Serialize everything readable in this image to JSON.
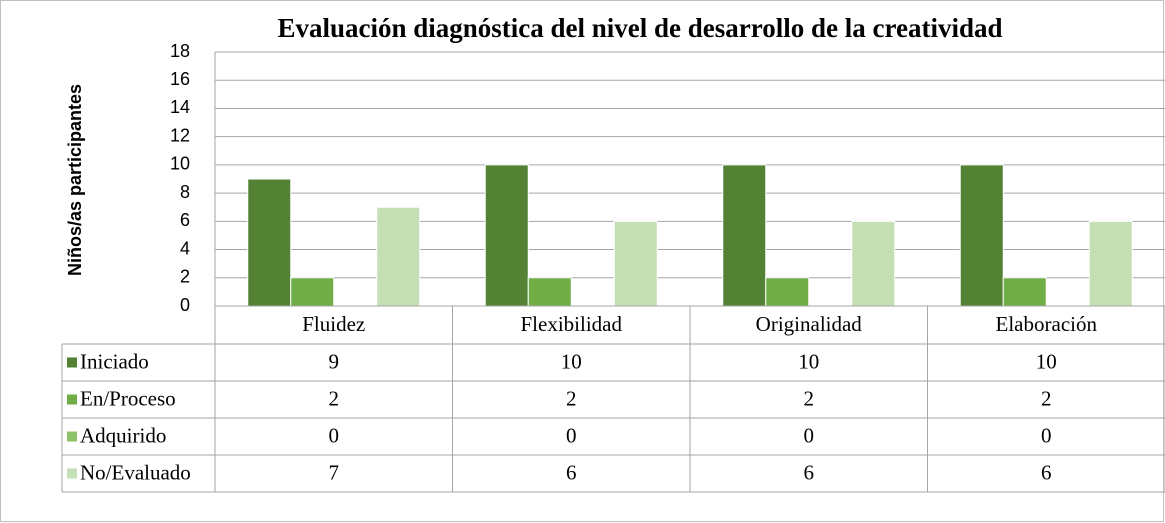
{
  "chart_data": {
    "type": "bar",
    "title": "Evaluación diagnóstica del nivel de desarrollo de la creatividad",
    "y_label": "Niños/as participantes",
    "categories": [
      "Fluidez",
      "Flexibilidad",
      "Originalidad",
      "Elaboración"
    ],
    "series": [
      {
        "name": "Iniciado",
        "color": "#548235",
        "values": [
          9,
          10,
          10,
          10
        ]
      },
      {
        "name": "En/Proceso",
        "color": "#70ad47",
        "values": [
          2,
          2,
          2,
          2
        ]
      },
      {
        "name": "Adquirido",
        "color": "#8fc06a",
        "values": [
          0,
          0,
          0,
          0
        ]
      },
      {
        "name": "No/Evaluado",
        "color": "#c5dfb4",
        "values": [
          7,
          6,
          6,
          6
        ]
      }
    ],
    "ylim": [
      0,
      18
    ],
    "yticks": [
      0,
      2,
      4,
      6,
      8,
      10,
      12,
      14,
      16,
      18
    ],
    "grid": true,
    "data_table": true
  }
}
